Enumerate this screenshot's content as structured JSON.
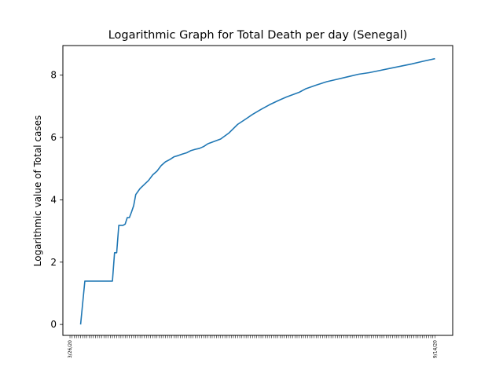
{
  "chart_data": {
    "type": "line",
    "title": "Logarithmic Graph for Total Death per day (Senegal)",
    "xlabel": "",
    "ylabel": "Logarithmic value of Total cases",
    "x_first_label": "3/26/20",
    "x_last_label": "9/14/20",
    "ylim": [
      -0.35,
      8.95
    ],
    "yticks": [
      0,
      2,
      4,
      6,
      8
    ],
    "grid": false,
    "line_color": "#1f77b4",
    "series": [
      {
        "points": [
          [
            "3/31/20",
            0.0
          ],
          [
            "4/02/20",
            1.39
          ],
          [
            "4/15/20",
            1.39
          ],
          [
            "4/16/20",
            2.3
          ],
          [
            "4/17/20",
            2.3
          ],
          [
            "4/18/20",
            3.18
          ],
          [
            "4/20/20",
            3.18
          ],
          [
            "4/21/20",
            3.22
          ],
          [
            "4/22/20",
            3.43
          ],
          [
            "4/23/20",
            3.43
          ],
          [
            "4/24/20",
            3.61
          ],
          [
            "4/25/20",
            3.81
          ],
          [
            "4/26/20",
            4.17
          ],
          [
            "4/28/20",
            4.36
          ],
          [
            "4/30/20",
            4.49
          ],
          [
            "5/02/20",
            4.62
          ],
          [
            "5/04/20",
            4.8
          ],
          [
            "5/06/20",
            4.92
          ],
          [
            "5/08/20",
            5.1
          ],
          [
            "5/10/20",
            5.22
          ],
          [
            "5/12/20",
            5.29
          ],
          [
            "5/14/20",
            5.38
          ],
          [
            "5/16/20",
            5.42
          ],
          [
            "5/18/20",
            5.47
          ],
          [
            "5/20/20",
            5.51
          ],
          [
            "5/22/20",
            5.58
          ],
          [
            "5/24/20",
            5.62
          ],
          [
            "5/26/20",
            5.65
          ],
          [
            "5/28/20",
            5.71
          ],
          [
            "5/30/20",
            5.8
          ],
          [
            "6/01/20",
            5.85
          ],
          [
            "6/05/20",
            5.95
          ],
          [
            "6/09/20",
            6.15
          ],
          [
            "6/13/20",
            6.42
          ],
          [
            "6/17/20",
            6.6
          ],
          [
            "6/20/20",
            6.74
          ],
          [
            "6/24/20",
            6.9
          ],
          [
            "6/28/20",
            7.05
          ],
          [
            "7/02/20",
            7.18
          ],
          [
            "7/06/20",
            7.3
          ],
          [
            "7/10/20",
            7.4
          ],
          [
            "7/12/20",
            7.45
          ],
          [
            "7/15/20",
            7.56
          ],
          [
            "7/20/20",
            7.68
          ],
          [
            "7/25/20",
            7.79
          ],
          [
            "7/30/20",
            7.87
          ],
          [
            "8/04/20",
            7.95
          ],
          [
            "8/09/20",
            8.03
          ],
          [
            "8/14/20",
            8.08
          ],
          [
            "8/19/20",
            8.15
          ],
          [
            "8/24/20",
            8.22
          ],
          [
            "8/29/20",
            8.29
          ],
          [
            "9/03/20",
            8.36
          ],
          [
            "9/08/20",
            8.44
          ],
          [
            "9/14/20",
            8.53
          ]
        ]
      }
    ]
  }
}
